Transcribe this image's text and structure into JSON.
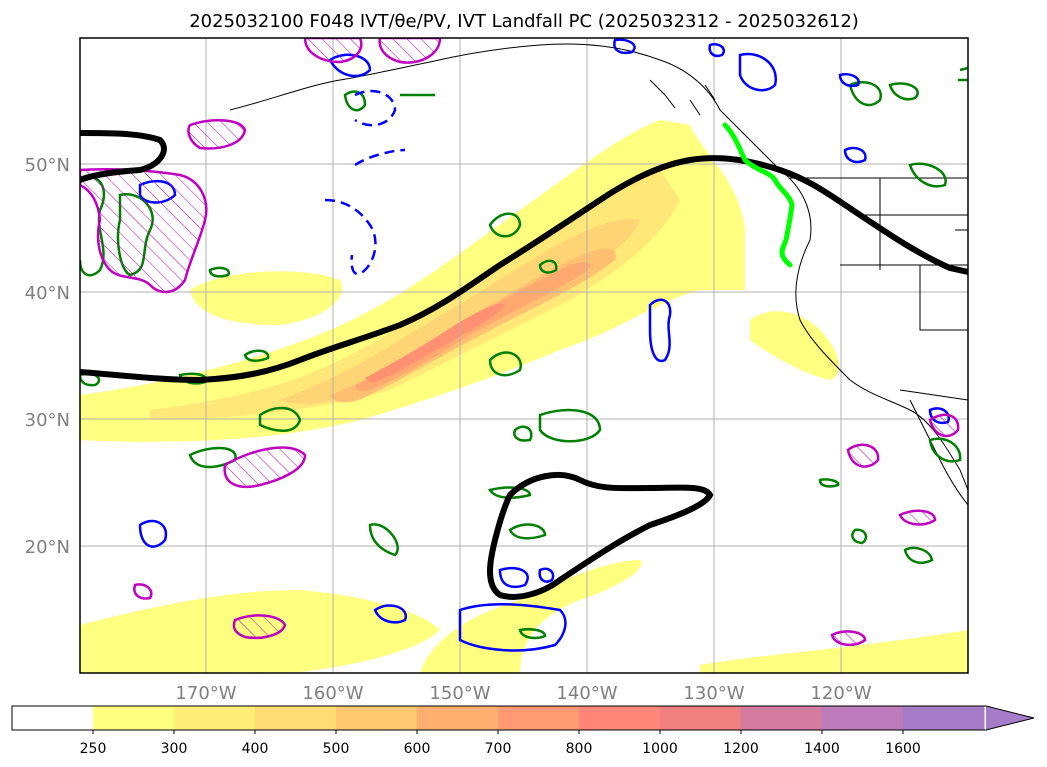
{
  "title": "2025032100 F048 IVT/θe/PV, IVT Landfall PC (2025032312 - 2025032612)",
  "map": {
    "lat_labels": [
      "50°N",
      "40°N",
      "30°N",
      "20°N"
    ],
    "lon_labels": [
      "170°W",
      "160°W",
      "150°W",
      "140°W",
      "130°W",
      "120°W"
    ],
    "extent": {
      "lon_min": -180,
      "lon_max": -110,
      "lat_min": 10,
      "lat_max": 60
    }
  },
  "colorbar": {
    "ticks": [
      "250",
      "300",
      "400",
      "500",
      "600",
      "700",
      "800",
      "1000",
      "1200",
      "1400",
      "1600"
    ],
    "colors": [
      "#ffff80",
      "#ffee77",
      "#ffdd74",
      "#ffc971",
      "#ffb070",
      "#ff9a72",
      "#ff8678",
      "#f08080",
      "#d47ca0",
      "#bc7cbc",
      "#a67cc8"
    ],
    "extend": "max"
  },
  "colors": {
    "theta_e": "#000000",
    "pv_green": "#008000",
    "pv_blue": "#0000ff",
    "pv_magenta": "#c000c0",
    "landfall": "#00ff00",
    "coastline": "#000000"
  }
}
